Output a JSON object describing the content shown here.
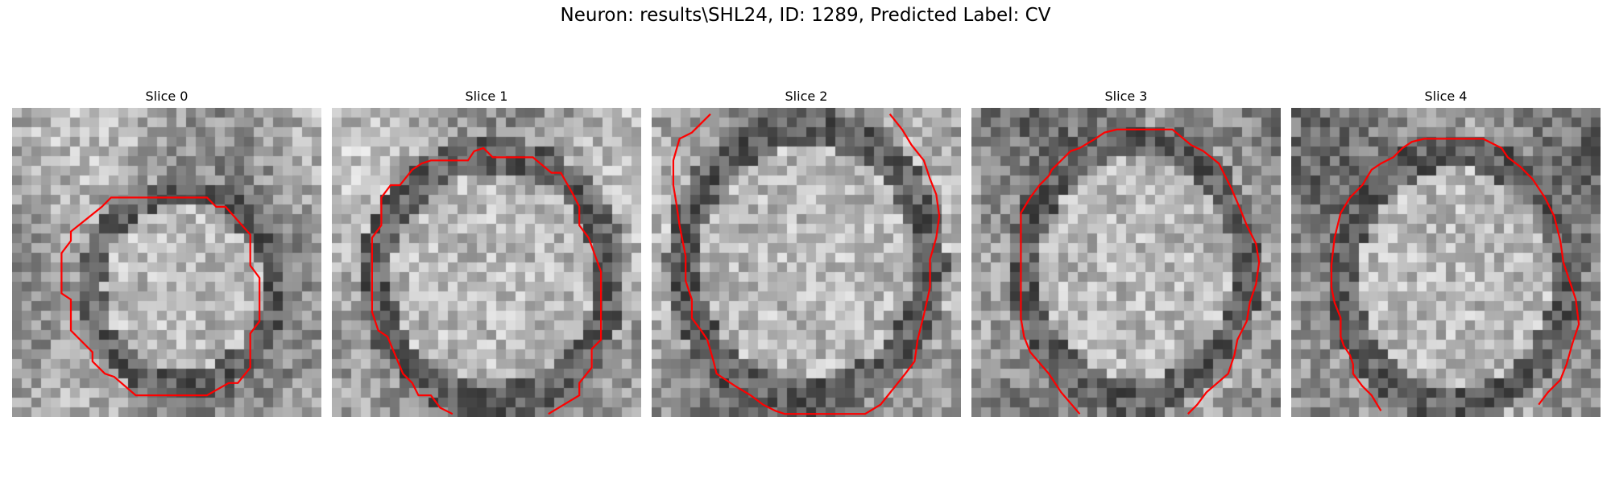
{
  "figure": {
    "title": "Neuron: results\\SHL24, ID: 1289, Predicted Label: CV",
    "contour_color": "#ff0000",
    "colormap": "grayscale",
    "slices": [
      {
        "title": "Slice 0",
        "contour": [
          [
            0.32,
            0.29
          ],
          [
            0.63,
            0.29
          ],
          [
            0.66,
            0.32
          ],
          [
            0.69,
            0.32
          ],
          [
            0.77,
            0.41
          ],
          [
            0.77,
            0.51
          ],
          [
            0.8,
            0.55
          ],
          [
            0.8,
            0.69
          ],
          [
            0.77,
            0.73
          ],
          [
            0.77,
            0.84
          ],
          [
            0.73,
            0.89
          ],
          [
            0.7,
            0.89
          ],
          [
            0.63,
            0.93
          ],
          [
            0.4,
            0.93
          ],
          [
            0.33,
            0.87
          ],
          [
            0.3,
            0.86
          ],
          [
            0.26,
            0.82
          ],
          [
            0.26,
            0.79
          ],
          [
            0.19,
            0.72
          ],
          [
            0.19,
            0.62
          ],
          [
            0.16,
            0.6
          ],
          [
            0.16,
            0.47
          ],
          [
            0.19,
            0.43
          ],
          [
            0.19,
            0.4
          ],
          [
            0.29,
            0.32
          ]
        ],
        "closed": true
      },
      {
        "title": "Slice 1",
        "contour": [
          [
            0.39,
            0.99
          ],
          [
            0.35,
            0.97
          ],
          [
            0.32,
            0.93
          ],
          [
            0.28,
            0.93
          ],
          [
            0.26,
            0.89
          ],
          [
            0.23,
            0.86
          ],
          [
            0.18,
            0.74
          ],
          [
            0.15,
            0.72
          ],
          [
            0.13,
            0.66
          ],
          [
            0.13,
            0.42
          ],
          [
            0.16,
            0.38
          ],
          [
            0.16,
            0.29
          ],
          [
            0.19,
            0.25
          ],
          [
            0.22,
            0.25
          ],
          [
            0.26,
            0.2
          ],
          [
            0.29,
            0.18
          ],
          [
            0.32,
            0.17
          ],
          [
            0.44,
            0.17
          ],
          [
            0.46,
            0.14
          ],
          [
            0.49,
            0.13
          ],
          [
            0.52,
            0.16
          ],
          [
            0.65,
            0.16
          ],
          [
            0.71,
            0.21
          ],
          [
            0.74,
            0.21
          ],
          [
            0.78,
            0.28
          ],
          [
            0.8,
            0.32
          ],
          [
            0.8,
            0.38
          ],
          [
            0.83,
            0.42
          ],
          [
            0.87,
            0.53
          ],
          [
            0.87,
            0.75
          ],
          [
            0.84,
            0.78
          ],
          [
            0.84,
            0.84
          ],
          [
            0.8,
            0.89
          ],
          [
            0.8,
            0.93
          ],
          [
            0.7,
            0.99
          ]
        ],
        "closed": false
      },
      {
        "title": "Slice 2",
        "contour": [
          [
            0.19,
            0.02
          ],
          [
            0.13,
            0.08
          ],
          [
            0.09,
            0.1
          ],
          [
            0.07,
            0.17
          ],
          [
            0.07,
            0.25
          ],
          [
            0.08,
            0.31
          ],
          [
            0.09,
            0.38
          ],
          [
            0.1,
            0.43
          ],
          [
            0.11,
            0.48
          ],
          [
            0.11,
            0.56
          ],
          [
            0.13,
            0.62
          ],
          [
            0.13,
            0.68
          ],
          [
            0.16,
            0.72
          ],
          [
            0.18,
            0.75
          ],
          [
            0.2,
            0.82
          ],
          [
            0.21,
            0.86
          ],
          [
            0.27,
            0.9
          ],
          [
            0.32,
            0.93
          ],
          [
            0.36,
            0.96
          ],
          [
            0.4,
            0.98
          ],
          [
            0.43,
            0.99
          ],
          [
            0.66,
            0.99
          ],
          [
            0.69,
            0.99
          ],
          [
            0.74,
            0.96
          ],
          [
            0.82,
            0.86
          ],
          [
            0.85,
            0.82
          ],
          [
            0.86,
            0.75
          ],
          [
            0.88,
            0.67
          ],
          [
            0.9,
            0.58
          ],
          [
            0.9,
            0.49
          ],
          [
            0.92,
            0.42
          ],
          [
            0.93,
            0.35
          ],
          [
            0.92,
            0.28
          ],
          [
            0.9,
            0.23
          ],
          [
            0.88,
            0.17
          ],
          [
            0.84,
            0.12
          ],
          [
            0.81,
            0.07
          ],
          [
            0.77,
            0.02
          ]
        ],
        "closed": false
      },
      {
        "title": "Slice 3",
        "contour": [
          [
            0.35,
            0.99
          ],
          [
            0.29,
            0.92
          ],
          [
            0.25,
            0.86
          ],
          [
            0.19,
            0.79
          ],
          [
            0.17,
            0.74
          ],
          [
            0.16,
            0.68
          ],
          [
            0.16,
            0.34
          ],
          [
            0.19,
            0.29
          ],
          [
            0.22,
            0.25
          ],
          [
            0.25,
            0.22
          ],
          [
            0.26,
            0.2
          ],
          [
            0.29,
            0.17
          ],
          [
            0.32,
            0.14
          ],
          [
            0.35,
            0.13
          ],
          [
            0.4,
            0.1
          ],
          [
            0.43,
            0.08
          ],
          [
            0.47,
            0.07
          ],
          [
            0.55,
            0.07
          ],
          [
            0.65,
            0.07
          ],
          [
            0.71,
            0.12
          ],
          [
            0.75,
            0.14
          ],
          [
            0.8,
            0.18
          ],
          [
            0.84,
            0.26
          ],
          [
            0.87,
            0.33
          ],
          [
            0.89,
            0.38
          ],
          [
            0.92,
            0.44
          ],
          [
            0.93,
            0.5
          ],
          [
            0.92,
            0.57
          ],
          [
            0.9,
            0.63
          ],
          [
            0.89,
            0.69
          ],
          [
            0.86,
            0.75
          ],
          [
            0.85,
            0.8
          ],
          [
            0.83,
            0.86
          ],
          [
            0.76,
            0.92
          ],
          [
            0.73,
            0.96
          ],
          [
            0.7,
            0.99
          ]
        ],
        "closed": false
      },
      {
        "title": "Slice 4",
        "contour": [
          [
            0.29,
            0.98
          ],
          [
            0.26,
            0.93
          ],
          [
            0.23,
            0.9
          ],
          [
            0.2,
            0.86
          ],
          [
            0.2,
            0.83
          ],
          [
            0.19,
            0.8
          ],
          [
            0.17,
            0.77
          ],
          [
            0.16,
            0.74
          ],
          [
            0.16,
            0.68
          ],
          [
            0.14,
            0.63
          ],
          [
            0.13,
            0.58
          ],
          [
            0.13,
            0.51
          ],
          [
            0.14,
            0.42
          ],
          [
            0.16,
            0.34
          ],
          [
            0.19,
            0.29
          ],
          [
            0.23,
            0.25
          ],
          [
            0.26,
            0.2
          ],
          [
            0.29,
            0.18
          ],
          [
            0.33,
            0.16
          ],
          [
            0.36,
            0.13
          ],
          [
            0.39,
            0.11
          ],
          [
            0.43,
            0.1
          ],
          [
            0.52,
            0.1
          ],
          [
            0.62,
            0.1
          ],
          [
            0.68,
            0.13
          ],
          [
            0.7,
            0.16
          ],
          [
            0.74,
            0.19
          ],
          [
            0.78,
            0.23
          ],
          [
            0.82,
            0.29
          ],
          [
            0.85,
            0.35
          ],
          [
            0.87,
            0.43
          ],
          [
            0.88,
            0.5
          ],
          [
            0.9,
            0.56
          ],
          [
            0.92,
            0.62
          ],
          [
            0.93,
            0.7
          ],
          [
            0.91,
            0.76
          ],
          [
            0.89,
            0.83
          ],
          [
            0.87,
            0.88
          ],
          [
            0.83,
            0.92
          ],
          [
            0.8,
            0.96
          ]
        ],
        "closed": false
      }
    ]
  }
}
